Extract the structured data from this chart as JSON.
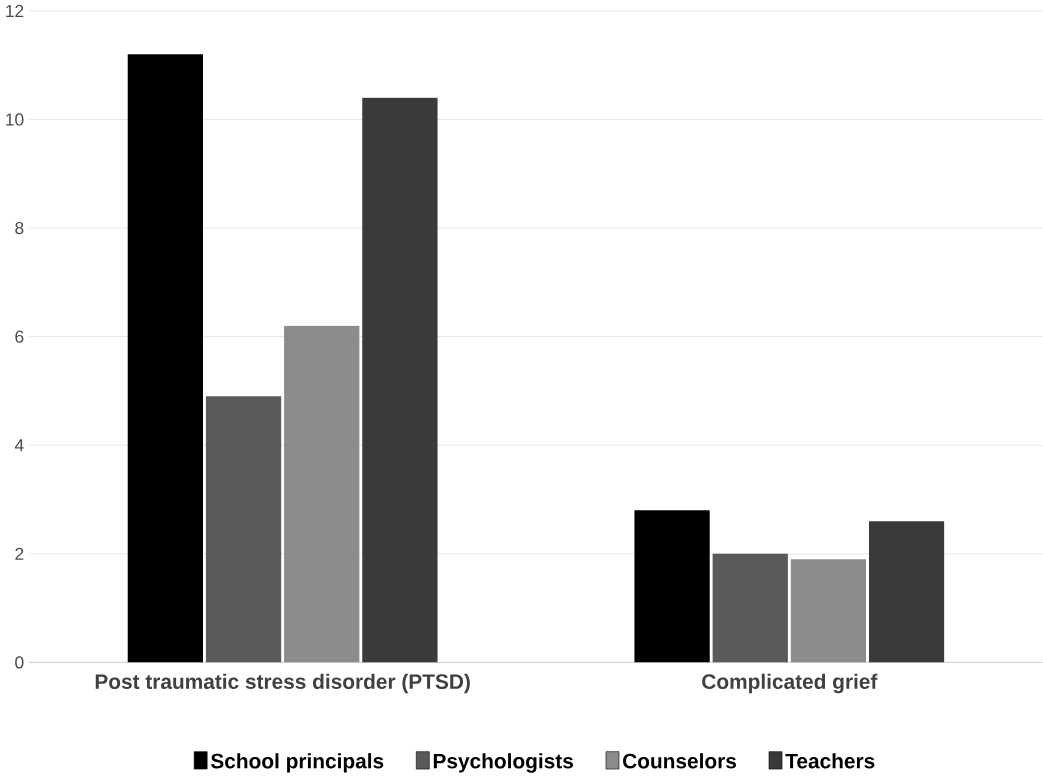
{
  "chart_data": {
    "type": "bar",
    "categories": [
      "Post traumatic stress disorder (PTSD)",
      "Complicated grief"
    ],
    "series": [
      {
        "name": "School principals",
        "color": "#000000",
        "values": [
          11.2,
          2.8
        ]
      },
      {
        "name": "Psychologists",
        "color": "#5a5a5a",
        "values": [
          4.9,
          2.0
        ]
      },
      {
        "name": "Counselors",
        "color": "#8c8c8c",
        "values": [
          6.2,
          1.9
        ]
      },
      {
        "name": "Teachers",
        "color": "#3a3a3a",
        "values": [
          10.4,
          2.6
        ]
      }
    ],
    "ylim": [
      0,
      12
    ],
    "yticks": [
      0,
      2,
      4,
      6,
      8,
      10,
      12
    ],
    "grid": "y",
    "legend": "bottom"
  }
}
